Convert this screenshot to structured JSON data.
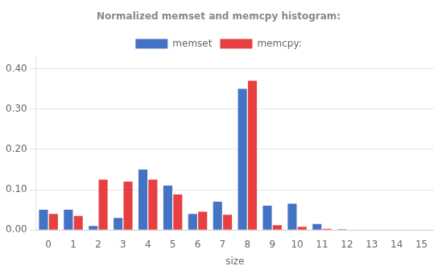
{
  "chart_data": {
    "type": "bar",
    "title": "Normalized memset and memcpy histogram:",
    "x_label": "size",
    "categories": [
      0,
      1,
      2,
      3,
      4,
      5,
      6,
      7,
      8,
      9,
      10,
      11,
      12,
      13,
      14,
      15
    ],
    "series": [
      {
        "name": "memset",
        "color": "#4472C4",
        "values": [
          0.05,
          0.05,
          0.01,
          0.03,
          0.15,
          0.11,
          0.04,
          0.07,
          0.35,
          0.06,
          0.065,
          0.015,
          0.002,
          0.0,
          0.0,
          0.0
        ]
      },
      {
        "name": "memcpy:",
        "color": "#E84040",
        "values": [
          0.04,
          0.035,
          0.125,
          0.12,
          0.125,
          0.088,
          0.045,
          0.038,
          0.37,
          0.012,
          0.008,
          0.003,
          0.0,
          0.0,
          0.0,
          0.0
        ]
      }
    ],
    "ylim": [
      0,
      0.43
    ],
    "yticks": [
      {
        "value": 0,
        "label": "0.00"
      },
      {
        "value": 0.1,
        "label": "0.10"
      },
      {
        "value": 0.2,
        "label": "0.20"
      },
      {
        "value": 0.3,
        "label": "0.30"
      },
      {
        "value": 0.4,
        "label": "0.40"
      }
    ],
    "grid": true,
    "legend": "top"
  }
}
